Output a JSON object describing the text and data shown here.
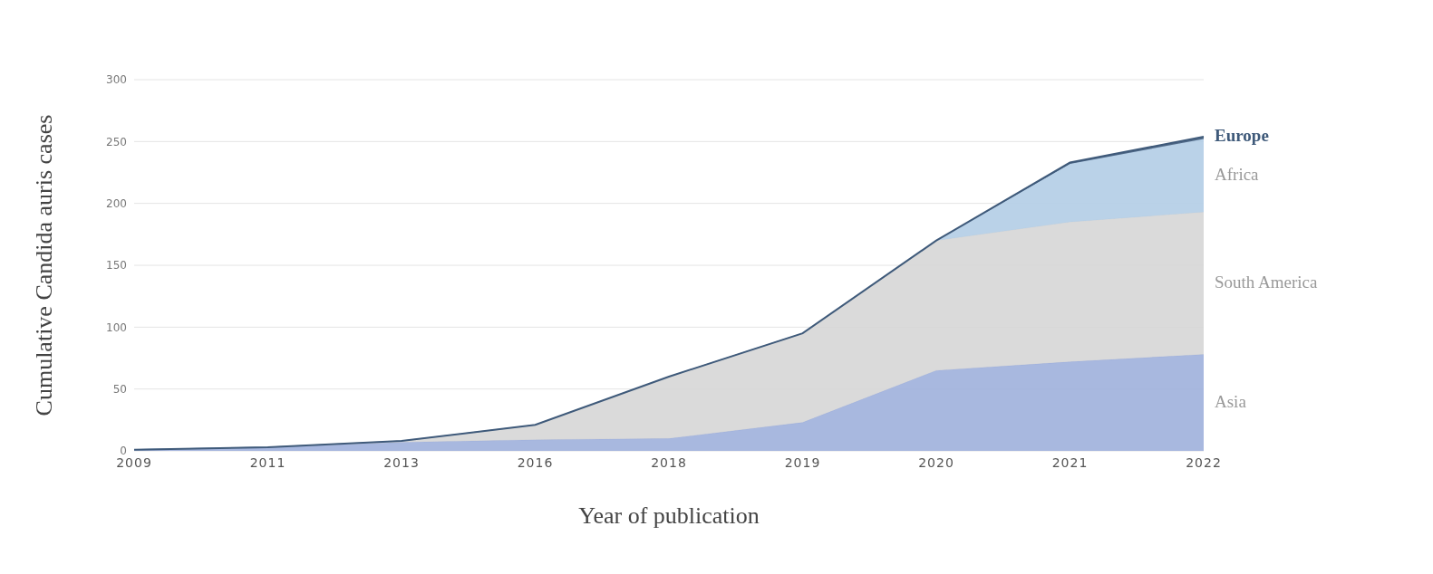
{
  "chart_data": {
    "type": "area",
    "stacked": true,
    "xlabel": "Year of publication",
    "ylabel": "Cumulative Candida auris cases",
    "categories": [
      "2009",
      "2011",
      "2013",
      "2016",
      "2018",
      "2019",
      "2020",
      "2021",
      "2022"
    ],
    "series": [
      {
        "name": "Asia",
        "color": "#9fb0dc",
        "values": [
          1,
          3,
          7,
          9,
          10,
          23,
          65,
          72,
          78
        ]
      },
      {
        "name": "South America",
        "color": "#d6d6d6",
        "values": [
          0,
          0,
          1,
          12,
          50,
          72,
          105,
          113,
          115
        ]
      },
      {
        "name": "Africa",
        "color": "#b3cde6",
        "values": [
          0,
          0,
          0,
          0,
          0,
          0,
          0,
          47,
          59
        ]
      },
      {
        "name": "Europe",
        "color": "#3f5a7a",
        "values": [
          0,
          0,
          0,
          0,
          0,
          0,
          0,
          1,
          2
        ]
      }
    ],
    "ylim": [
      0,
      300
    ],
    "yticks": [
      0,
      50,
      100,
      150,
      200,
      250,
      300
    ],
    "grid": "y"
  }
}
